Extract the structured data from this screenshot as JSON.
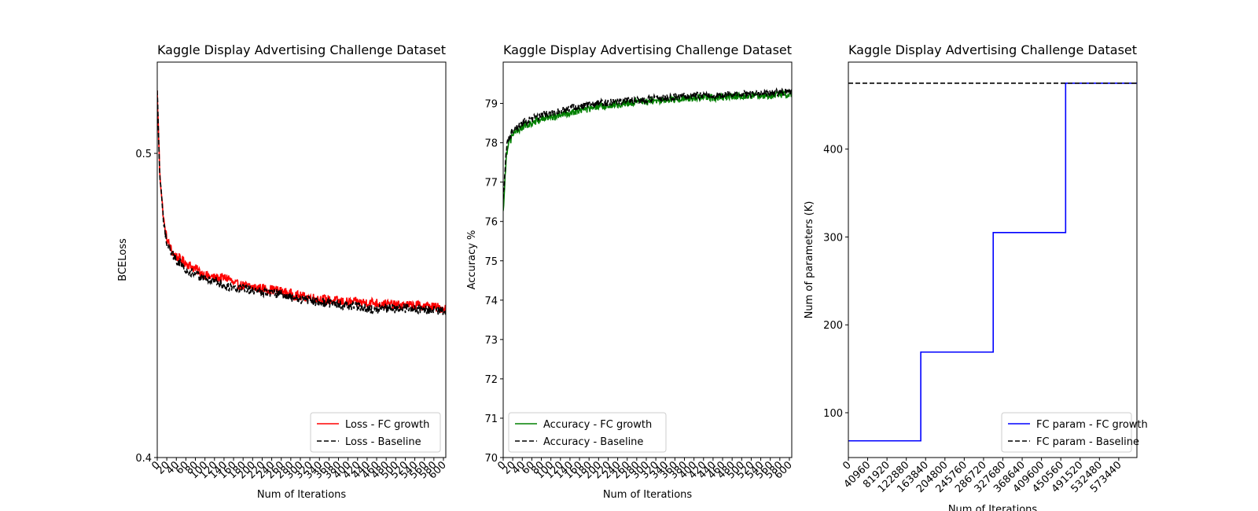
{
  "chart_data": [
    {
      "type": "line",
      "title": "Kaggle Display Advertising Challenge Dataset",
      "xlabel": "Num of Iterations",
      "ylabel": "BCELoss",
      "xlim": [
        0,
        605
      ],
      "ylim": [
        0.4,
        0.53
      ],
      "xticks": [
        0,
        20,
        40,
        60,
        80,
        100,
        120,
        140,
        160,
        180,
        200,
        220,
        240,
        260,
        280,
        300,
        320,
        340,
        360,
        380,
        400,
        420,
        440,
        460,
        480,
        500,
        520,
        540,
        560,
        580,
        600
      ],
      "yticks": [
        0.4,
        0.5
      ],
      "ytick_labels": [
        "0.4",
        "0.5"
      ],
      "legend_position": "lower-right",
      "legend": [
        "Loss - FC growth",
        "Loss - Baseline"
      ],
      "series": [
        {
          "name": "Loss - FC growth",
          "color": "#ff0000",
          "style": "solid",
          "x": [
            0,
            5,
            10,
            15,
            20,
            30,
            40,
            60,
            80,
            100,
            120,
            150,
            160,
            200,
            250,
            300,
            350,
            400,
            450,
            500,
            550,
            605
          ],
          "y": [
            0.52,
            0.495,
            0.484,
            0.476,
            0.472,
            0.468,
            0.466,
            0.464,
            0.462,
            0.46,
            0.459,
            0.459,
            0.457,
            0.456,
            0.455,
            0.453,
            0.452,
            0.451,
            0.451,
            0.45,
            0.45,
            0.449
          ]
        },
        {
          "name": "Loss - Baseline",
          "color": "#000000",
          "style": "dashed",
          "x": [
            0,
            5,
            10,
            15,
            20,
            30,
            40,
            60,
            80,
            100,
            120,
            150,
            200,
            250,
            300,
            350,
            400,
            450,
            500,
            550,
            605
          ],
          "y": [
            0.52,
            0.494,
            0.483,
            0.475,
            0.471,
            0.467,
            0.465,
            0.462,
            0.46,
            0.459,
            0.458,
            0.456,
            0.455,
            0.454,
            0.452,
            0.451,
            0.45,
            0.449,
            0.449,
            0.449,
            0.448
          ]
        }
      ]
    },
    {
      "type": "line",
      "title": "Kaggle Display Advertising Challenge Dataset",
      "xlabel": "Num of Iterations",
      "ylabel": "Accuracy %",
      "xlim": [
        0,
        605
      ],
      "ylim": [
        70,
        80.05
      ],
      "xticks": [
        0,
        20,
        40,
        60,
        80,
        100,
        120,
        140,
        160,
        180,
        200,
        220,
        240,
        260,
        280,
        300,
        320,
        340,
        360,
        380,
        400,
        420,
        440,
        460,
        480,
        500,
        520,
        540,
        560,
        580,
        600
      ],
      "yticks": [
        70,
        71,
        72,
        73,
        74,
        75,
        76,
        77,
        78,
        79
      ],
      "ytick_labels": [
        "70",
        "71",
        "72",
        "73",
        "74",
        "75",
        "76",
        "77",
        "78",
        "79"
      ],
      "legend_position": "lower-left",
      "legend": [
        "Accuracy - FC growth",
        "Accuracy - Baseline"
      ],
      "series": [
        {
          "name": "Accuracy - FC growth",
          "color": "#008000",
          "style": "solid",
          "x": [
            0,
            3,
            6,
            10,
            20,
            30,
            40,
            60,
            80,
            100,
            120,
            150,
            200,
            250,
            300,
            350,
            400,
            450,
            500,
            550,
            605
          ],
          "y": [
            76.2,
            77.0,
            77.6,
            78.0,
            78.2,
            78.3,
            78.4,
            78.5,
            78.6,
            78.65,
            78.7,
            78.8,
            78.9,
            79.0,
            79.05,
            79.1,
            79.15,
            79.15,
            79.2,
            79.2,
            79.25
          ]
        },
        {
          "name": "Accuracy - Baseline",
          "color": "#000000",
          "style": "dashed",
          "x": [
            0,
            3,
            6,
            10,
            20,
            30,
            40,
            60,
            80,
            100,
            120,
            150,
            200,
            250,
            300,
            350,
            400,
            450,
            500,
            550,
            605
          ],
          "y": [
            76.5,
            77.2,
            77.8,
            78.1,
            78.3,
            78.4,
            78.5,
            78.6,
            78.7,
            78.75,
            78.8,
            78.9,
            79.0,
            79.05,
            79.1,
            79.15,
            79.2,
            79.2,
            79.25,
            79.25,
            79.3
          ]
        }
      ]
    },
    {
      "type": "line",
      "title": "Kaggle Display Advertising Challenge Dataset",
      "xlabel": "Num of Iterations",
      "ylabel": "Num of parameters (K)",
      "xlim": [
        0,
        612000
      ],
      "ylim": [
        49,
        499
      ],
      "xticks": [
        0,
        40960,
        81920,
        122880,
        163840,
        204800,
        245760,
        286720,
        327680,
        368640,
        409600,
        450560,
        491520,
        532480,
        573440
      ],
      "xtick_labels": [
        "0",
        "40960",
        "81920",
        "122880",
        "163840",
        "204800",
        "245760",
        "286720",
        "327680",
        "368640",
        "409600",
        "450560",
        "491520",
        "532480",
        "573440"
      ],
      "yticks": [
        100,
        200,
        300,
        400
      ],
      "ytick_labels": [
        "100",
        "200",
        "300",
        "400"
      ],
      "legend_position": "lower-right",
      "legend": [
        "FC param - FC growth",
        "FC param - Baseline"
      ],
      "series": [
        {
          "name": "FC param - FC growth",
          "color": "#0000ff",
          "style": "solid",
          "x": [
            0,
            153600,
            153600,
            307200,
            307200,
            460800,
            460800,
            612000
          ],
          "y": [
            68,
            68,
            169,
            169,
            305,
            305,
            475,
            475
          ]
        },
        {
          "name": "FC param - Baseline",
          "color": "#000000",
          "style": "dashed",
          "x": [
            0,
            612000
          ],
          "y": [
            475,
            475
          ]
        }
      ]
    }
  ]
}
